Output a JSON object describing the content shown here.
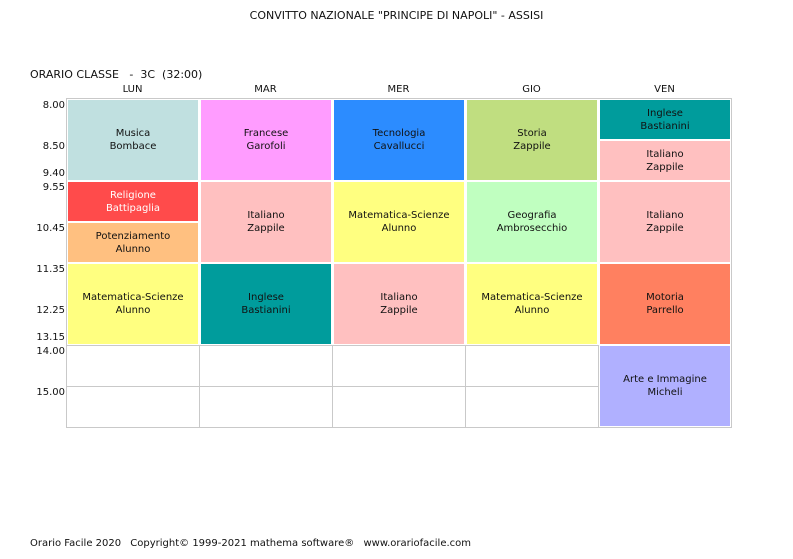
{
  "header": {
    "school": "CONVITTO NAZIONALE \"PRINCIPE DI NAPOLI\" - ASSISI"
  },
  "class_label": "ORARIO CLASSE   -  3C  (32:00)",
  "days": [
    "LUN",
    "MAR",
    "MER",
    "GIO",
    "VEN"
  ],
  "times": [
    "8.00",
    "8.50",
    "9.40",
    "9.55",
    "10.45",
    "11.35",
    "12.25",
    "13.15",
    "14.00",
    "15.00"
  ],
  "colors": {
    "musica": "#c0e0e0",
    "religione": "#ff4b4b",
    "potenziamento": "#ffc080",
    "matematica": "#ffff80",
    "francese": "#ff9cff",
    "italiano": "#ffc0c0",
    "inglese": "#009c9c",
    "tecnologia": "#2c8cff",
    "storia": "#c0de80",
    "geografia": "#c0ffc0",
    "motoria": "#ff8060",
    "arte": "#b0b0ff"
  },
  "lessons": {
    "lun_1": {
      "subject": "Musica",
      "teacher": "Bombace"
    },
    "lun_2": {
      "subject": "Religione",
      "teacher": "Battipaglia"
    },
    "lun_3": {
      "subject": "Potenziamento",
      "teacher": "Alunno"
    },
    "lun_4": {
      "subject": "Matematica-Scienze",
      "teacher": "Alunno"
    },
    "mar_1": {
      "subject": "Francese",
      "teacher": "Garofoli"
    },
    "mar_2": {
      "subject": "Italiano",
      "teacher": "Zappile"
    },
    "mar_3": {
      "subject": "Inglese",
      "teacher": "Bastianini"
    },
    "mer_1": {
      "subject": "Tecnologia",
      "teacher": "Cavallucci"
    },
    "mer_2": {
      "subject": "Matematica-Scienze",
      "teacher": "Alunno"
    },
    "mer_3": {
      "subject": "Italiano",
      "teacher": "Zappile"
    },
    "gio_1": {
      "subject": "Storia",
      "teacher": "Zappile"
    },
    "gio_2": {
      "subject": "Geografia",
      "teacher": "Ambrosecchio"
    },
    "gio_3": {
      "subject": "Matematica-Scienze",
      "teacher": "Alunno"
    },
    "ven_1": {
      "subject": "Inglese",
      "teacher": "Bastianini"
    },
    "ven_2": {
      "subject": "Italiano",
      "teacher": "Zappile"
    },
    "ven_3": {
      "subject": "Italiano",
      "teacher": "Zappile"
    },
    "ven_4": {
      "subject": "Motoria",
      "teacher": "Parrello"
    },
    "ven_5": {
      "subject": "Arte e Immagine",
      "teacher": "Micheli"
    }
  },
  "footer": {
    "app": "Orario Facile 2020",
    "copyright": "Copyright© 1999-2021 mathema software®",
    "website": "www.orariofacile.com"
  }
}
